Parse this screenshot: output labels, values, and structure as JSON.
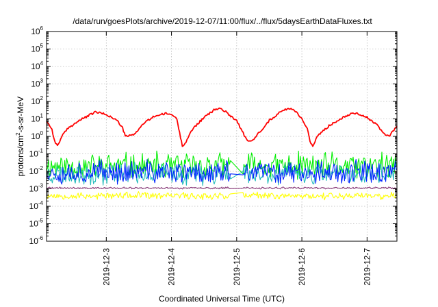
{
  "chart_data": {
    "type": "line",
    "title": "/data/run/goesPlots/archive/2019-12-07/11:00/flux/../flux/5daysEarthDataFluxes.txt",
    "xlabel": "Coordinated Universal Time (UTC)",
    "ylabel_parts": [
      "protons/cm",
      "2",
      "-s-sr-MeV"
    ],
    "x_axis": {
      "type": "time",
      "range": [
        "2019-12-02T02:00",
        "2019-12-07T11:00"
      ],
      "tick_labels": [
        "2019-12-3",
        "2019-12-4",
        "2019-12-5",
        "2019-12-6",
        "2019-12-7"
      ],
      "ticks": [
        "2019-12-03T00:00",
        "2019-12-04T00:00",
        "2019-12-05T00:00",
        "2019-12-06T00:00",
        "2019-12-07T00:00"
      ]
    },
    "y_axis": {
      "scale": "log",
      "range": [
        1e-06,
        1000000.0
      ],
      "tick_labels": [
        {
          "base": "10",
          "exp": "-6"
        },
        {
          "base": "10",
          "exp": "-5"
        },
        {
          "base": "10",
          "exp": "-4"
        },
        {
          "base": "10",
          "exp": "-3"
        },
        {
          "base": "10",
          "exp": "-2"
        },
        {
          "base": "10",
          "exp": "-1"
        },
        {
          "base": "10",
          "exp": "0"
        },
        {
          "base": "10",
          "exp": "1"
        },
        {
          "base": "10",
          "exp": "2"
        },
        {
          "base": "10",
          "exp": "3"
        },
        {
          "base": "10",
          "exp": "4"
        },
        {
          "base": "10",
          "exp": "5"
        },
        {
          "base": "10",
          "exp": "6"
        }
      ]
    },
    "grid": true,
    "series": [
      {
        "color": "#ff0000",
        "style": "smooth",
        "x": [
          "2019-12-02T02:00",
          "2019-12-02T04:00",
          "2019-12-02T05:00",
          "2019-12-02T06:00",
          "2019-12-02T08:00",
          "2019-12-02T10:00",
          "2019-12-02T14:00",
          "2019-12-02T17:00",
          "2019-12-02T20:00",
          "2019-12-03T00:00",
          "2019-12-03T04:00",
          "2019-12-03T06:00",
          "2019-12-03T07:00",
          "2019-12-03T10:00",
          "2019-12-03T14:00",
          "2019-12-03T18:00",
          "2019-12-03T22:00",
          "2019-12-04T00:00",
          "2019-12-04T02:00",
          "2019-12-04T03:00",
          "2019-12-04T04:00",
          "2019-12-04T05:00",
          "2019-12-04T08:00",
          "2019-12-04T12:00",
          "2019-12-04T16:00",
          "2019-12-04T18:00",
          "2019-12-04T20:00",
          "2019-12-05T00:00",
          "2019-12-05T02:00",
          "2019-12-05T04:00",
          "2019-12-05T06:00",
          "2019-12-05T08:00",
          "2019-12-05T12:00",
          "2019-12-05T16:00",
          "2019-12-05T19:00",
          "2019-12-05T20:00",
          "2019-12-05T22:00",
          "2019-12-06T00:00",
          "2019-12-06T02:00",
          "2019-12-06T03:00",
          "2019-12-06T04:00",
          "2019-12-06T06:00",
          "2019-12-06T10:00",
          "2019-12-06T14:00",
          "2019-12-06T18:00",
          "2019-12-06T20:00",
          "2019-12-07T00:00",
          "2019-12-07T04:00",
          "2019-12-07T06:00",
          "2019-12-07T08:00",
          "2019-12-07T11:00"
        ],
        "y": [
          8,
          2.5,
          0.5,
          0.3,
          1.2,
          3,
          8,
          14,
          25,
          18,
          8,
          3,
          1,
          1.2,
          6,
          15,
          20,
          18,
          10,
          1.5,
          0.3,
          0.4,
          3,
          12,
          35,
          40,
          25,
          8,
          2,
          0.5,
          0.6,
          1.5,
          8,
          25,
          40,
          40,
          25,
          10,
          3,
          0.5,
          0.25,
          1.2,
          4,
          10,
          20,
          22,
          12,
          4,
          1.5,
          1,
          4
        ]
      },
      {
        "color": "#00ee00",
        "style": "noise",
        "center": 0.02,
        "spread": 0.9,
        "seed": 11,
        "gap": [
          "2019-12-04T22:00",
          "2019-12-05T02:00"
        ]
      },
      {
        "color": "#22bbbb",
        "style": "noise",
        "center": 0.007,
        "spread": 0.7,
        "seed": 23,
        "gap": [
          "2019-12-04T22:00",
          "2019-12-05T02:00"
        ]
      },
      {
        "color": "#0022ff",
        "style": "noise",
        "center": 0.009,
        "spread": 0.8,
        "seed": 37,
        "gap": [
          "2019-12-04T22:00",
          "2019-12-05T02:00"
        ]
      },
      {
        "color": "#ffff00",
        "style": "noise",
        "center": 0.0004,
        "spread": 0.25,
        "seed": 53,
        "gap": [
          "2019-12-04T22:00",
          "2019-12-05T02:00"
        ]
      },
      {
        "color": "#8b3a7a",
        "style": "noise",
        "center": 0.0011,
        "spread": 0.07,
        "seed": 71,
        "gap": [
          "2019-12-04T22:00",
          "2019-12-05T02:00"
        ]
      }
    ]
  }
}
